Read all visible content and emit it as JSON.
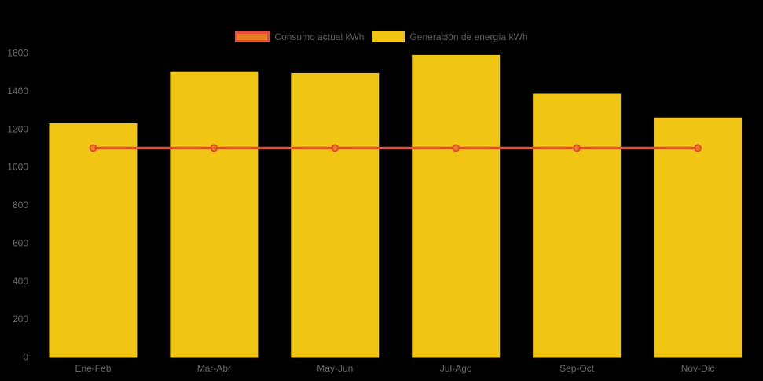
{
  "background_color": "#000000",
  "colors": {
    "bar": "#f0c514",
    "line": "#e74c3c",
    "marker_fill": "#e67e22",
    "axis_text": "#6a6a6a",
    "legend_text": "#5f5f5f"
  },
  "legend": {
    "position": "top-center",
    "items": [
      {
        "label": "Consumo actual kWh",
        "series_type": "line"
      },
      {
        "label": "Generación de energía kWh",
        "series_type": "bar"
      }
    ]
  },
  "chart_data": {
    "type": "bar",
    "subtype": "bar-with-line-overlay",
    "title": "",
    "xlabel": "",
    "ylabel": "",
    "categories": [
      "Ene-Feb",
      "Mar-Abr",
      "May-Jun",
      "Jul-Ago",
      "Sep-Oct",
      "Nov-Dic"
    ],
    "series": [
      {
        "name": "Generación de energía kWh",
        "type": "bar",
        "color": "#f0c514",
        "values": [
          1230,
          1500,
          1495,
          1590,
          1385,
          1260
        ]
      },
      {
        "name": "Consumo actual kWh",
        "type": "line",
        "color": "#e74c3c",
        "marker_color": "#e67e22",
        "values": [
          1100,
          1100,
          1100,
          1100,
          1100,
          1100
        ]
      }
    ],
    "ylim": [
      0,
      1600
    ],
    "ytick_step": 200,
    "ytick_labels": [
      "0",
      "200",
      "400",
      "600",
      "800",
      "1000",
      "1200",
      "1400",
      "1600"
    ],
    "grid": false,
    "legend_position": "top-center"
  }
}
